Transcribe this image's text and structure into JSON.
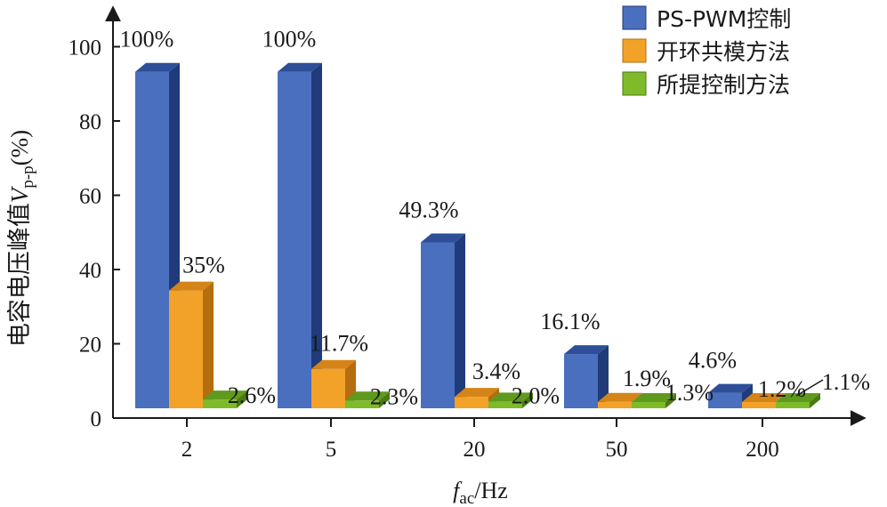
{
  "chart_data": {
    "type": "bar",
    "title": "",
    "xlabel": {
      "symbol": "f",
      "subscript": "ac",
      "unit": "/Hz"
    },
    "ylabel": {
      "text": "电容电压峰值",
      "symbol": "V",
      "subscript": "p-p",
      "unit": "(%)"
    },
    "ylim": [
      0,
      100
    ],
    "yticks": [
      "0",
      "20",
      "40",
      "60",
      "80",
      "100"
    ],
    "categories": [
      "2",
      "5",
      "20",
      "50",
      "200"
    ],
    "series": [
      {
        "name": "PS-PWM控制",
        "color": "#4a6fbe",
        "side_color": "#1f3b7a",
        "top_color": "#2e4f98",
        "values": [
          100,
          100,
          49.3,
          16.1,
          4.6
        ],
        "labels": [
          "100%",
          "100%",
          "49.3%",
          "16.1%",
          "4.6%"
        ]
      },
      {
        "name": "开环共模方法",
        "color": "#f2a228",
        "side_color": "#b46d0f",
        "top_color": "#d48418",
        "values": [
          35,
          11.7,
          3.4,
          1.9,
          1.2
        ],
        "labels": [
          "35%",
          "11.7%",
          "3.4%",
          "1.9%",
          "1.2%"
        ]
      },
      {
        "name": "所提控制方法",
        "color": "#7fba2a",
        "side_color": "#4a7a12",
        "top_color": "#5f9a1c",
        "values": [
          2.6,
          2.3,
          2.0,
          1.3,
          1.1
        ],
        "labels": [
          "2.6%",
          "2.3%",
          "2.0%",
          "1.3%",
          "1.1%"
        ]
      }
    ],
    "legend_position": "top-right"
  }
}
